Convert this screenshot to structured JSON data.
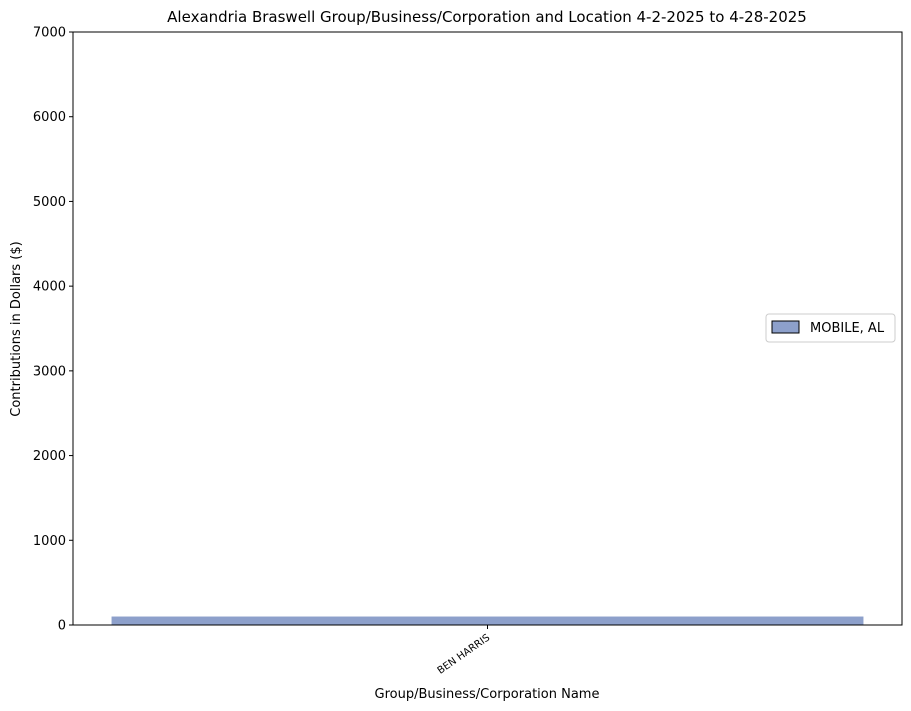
{
  "chart_data": {
    "type": "bar",
    "title": "Alexandria Braswell Group/Business/Corporation and Location 4-2-2025 to 4-28-2025",
    "xlabel": "Group/Business/Corporation Name",
    "ylabel": "Contributions in Dollars ($)",
    "categories": [
      "BEN HARRIS"
    ],
    "series": [
      {
        "name": "MOBILE, AL",
        "values": [
          100
        ],
        "color": "#8da0cb"
      }
    ],
    "ylim": [
      0,
      7000
    ],
    "yticks": [
      "0",
      "1000",
      "2000",
      "3000",
      "4000",
      "5000",
      "6000",
      "7000"
    ],
    "grid": false,
    "legend_position": "center-right"
  }
}
